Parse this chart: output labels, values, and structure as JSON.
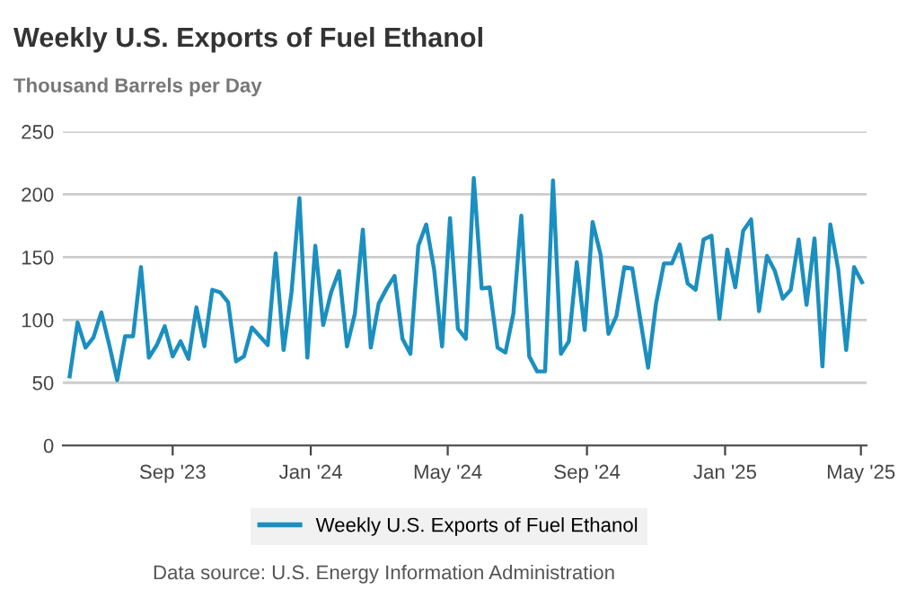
{
  "chart_data": {
    "type": "line",
    "title": "Weekly U.S. Exports of Fuel Ethanol",
    "ylabel": "Thousand Barrels per Day",
    "x": [
      "2023-06-02",
      "2023-06-09",
      "2023-06-16",
      "2023-06-23",
      "2023-06-30",
      "2023-07-07",
      "2023-07-14",
      "2023-07-21",
      "2023-07-28",
      "2023-08-04",
      "2023-08-11",
      "2023-08-18",
      "2023-08-25",
      "2023-09-01",
      "2023-09-08",
      "2023-09-15",
      "2023-09-22",
      "2023-09-29",
      "2023-10-06",
      "2023-10-13",
      "2023-10-20",
      "2023-10-27",
      "2023-11-03",
      "2023-11-10",
      "2023-11-17",
      "2023-11-24",
      "2023-12-01",
      "2023-12-08",
      "2023-12-15",
      "2023-12-22",
      "2023-12-29",
      "2024-01-05",
      "2024-01-12",
      "2024-01-19",
      "2024-01-26",
      "2024-02-02",
      "2024-02-09",
      "2024-02-16",
      "2024-02-23",
      "2024-03-01",
      "2024-03-08",
      "2024-03-15",
      "2024-03-22",
      "2024-03-29",
      "2024-04-05",
      "2024-04-12",
      "2024-04-19",
      "2024-04-26",
      "2024-05-03",
      "2024-05-10",
      "2024-05-17",
      "2024-05-24",
      "2024-05-31",
      "2024-06-07",
      "2024-06-14",
      "2024-06-21",
      "2024-06-28",
      "2024-07-05",
      "2024-07-12",
      "2024-07-19",
      "2024-07-26",
      "2024-08-02",
      "2024-08-09",
      "2024-08-16",
      "2024-08-23",
      "2024-08-30",
      "2024-09-06",
      "2024-09-13",
      "2024-09-20",
      "2024-09-27",
      "2024-10-04",
      "2024-10-11",
      "2024-10-18",
      "2024-10-25",
      "2024-11-01",
      "2024-11-08",
      "2024-11-15",
      "2024-11-22",
      "2024-11-29",
      "2024-12-06",
      "2024-12-13",
      "2024-12-20",
      "2024-12-27",
      "2025-01-03",
      "2025-01-10",
      "2025-01-17",
      "2025-01-24",
      "2025-01-31",
      "2025-02-07",
      "2025-02-14",
      "2025-02-21",
      "2025-02-28",
      "2025-03-07",
      "2025-03-14",
      "2025-03-21",
      "2025-03-28",
      "2025-04-04",
      "2025-04-11",
      "2025-04-18",
      "2025-04-25",
      "2025-05-02"
    ],
    "series": [
      {
        "name": "Weekly U.S. Exports of Fuel Ethanol",
        "color": "#1a8fc0",
        "values": [
          55,
          98,
          78,
          86,
          106,
          80,
          52,
          87,
          87,
          142,
          70,
          80,
          95,
          71,
          83,
          69,
          110,
          79,
          124,
          122,
          114,
          67,
          71,
          94,
          87,
          80,
          153,
          76,
          122,
          197,
          70,
          159,
          96,
          122,
          139,
          79,
          105,
          172,
          78,
          113,
          125,
          135,
          85,
          73,
          159,
          176,
          140,
          79,
          181,
          93,
          85,
          213,
          125,
          126,
          78,
          74,
          105,
          183,
          71,
          59,
          59,
          211,
          73,
          83,
          146,
          92,
          178,
          152,
          89,
          103,
          142,
          141,
          101,
          62,
          113,
          145,
          145,
          160,
          129,
          124,
          164,
          167,
          101,
          156,
          126,
          171,
          180,
          107,
          151,
          139,
          117,
          124,
          164,
          112,
          165,
          63,
          176,
          140,
          76,
          142,
          130
        ]
      }
    ],
    "xlim": [
      "2023-05-27",
      "2025-05-06"
    ],
    "xticks": [
      {
        "value": "2023-09-01",
        "label": "Sep '23"
      },
      {
        "value": "2024-01-01",
        "label": "Jan '24"
      },
      {
        "value": "2024-05-01",
        "label": "May '24"
      },
      {
        "value": "2024-09-01",
        "label": "Sep '24"
      },
      {
        "value": "2025-01-01",
        "label": "Jan '25"
      },
      {
        "value": "2025-05-01",
        "label": "May '25"
      }
    ],
    "ylim": [
      0,
      250
    ],
    "yticks": [
      0,
      50,
      100,
      150,
      200,
      250
    ],
    "grid": "y",
    "legend": "bottom",
    "marker": "none",
    "line_style": "solid",
    "annotations": [
      "Data source: U.S. Energy Information Administration"
    ]
  }
}
